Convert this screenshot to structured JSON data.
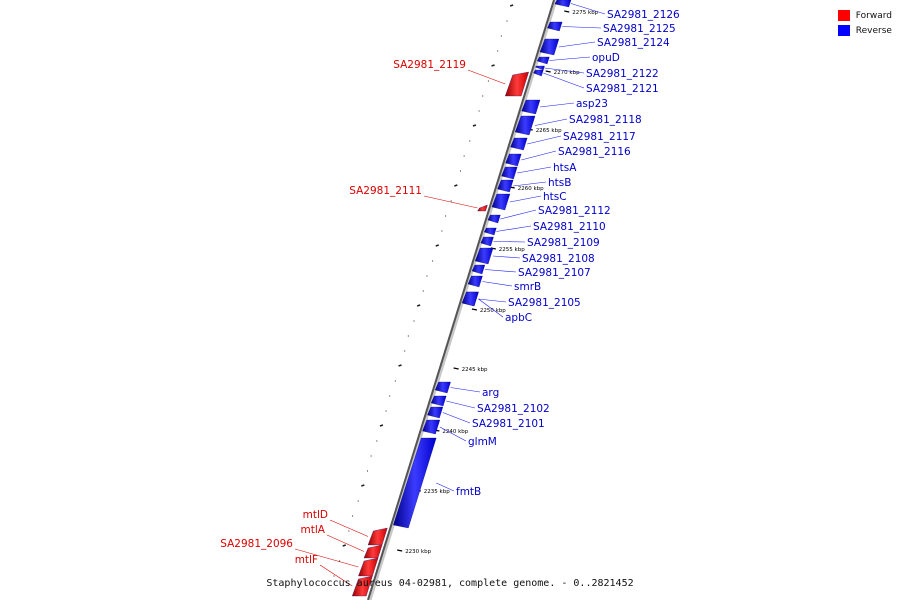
{
  "legend": {
    "forward_label": "Forward",
    "reverse_label": "Reverse",
    "forward_color": "#ff0000",
    "reverse_color": "#0000ff"
  },
  "footer": {
    "title": "Staphylococcus aureus 04-02981, complete genome. - 0..2821452"
  },
  "scale": {
    "unit": "kbp",
    "tick_labels": [
      "2275 kbp",
      "2270 kbp",
      "2265 kbp",
      "2260 kbp",
      "2255 kbp",
      "2250 kbp",
      "2245 kbp",
      "2240 kbp",
      "2235 kbp",
      "2230 kbp"
    ]
  },
  "genes": {
    "forward": [
      {
        "name": "SA2981_2119"
      },
      {
        "name": "SA2981_2111"
      },
      {
        "name": "mtlD"
      },
      {
        "name": "mtlA"
      },
      {
        "name": "SA2981_2096"
      },
      {
        "name": "mtlF"
      }
    ],
    "reverse": [
      {
        "name": "SA2981_2126"
      },
      {
        "name": "SA2981_2125"
      },
      {
        "name": "SA2981_2124"
      },
      {
        "name": "opuD"
      },
      {
        "name": "SA2981_2122"
      },
      {
        "name": "SA2981_2121"
      },
      {
        "name": "asp23"
      },
      {
        "name": "SA2981_2118"
      },
      {
        "name": "SA2981_2117"
      },
      {
        "name": "SA2981_2116"
      },
      {
        "name": "htsA"
      },
      {
        "name": "htsB"
      },
      {
        "name": "htsC"
      },
      {
        "name": "SA2981_2112"
      },
      {
        "name": "SA2981_2110"
      },
      {
        "name": "SA2981_2109"
      },
      {
        "name": "SA2981_2108"
      },
      {
        "name": "SA2981_2107"
      },
      {
        "name": "smrB"
      },
      {
        "name": "SA2981_2105"
      },
      {
        "name": "apbC"
      },
      {
        "name": "arg"
      },
      {
        "name": "SA2981_2102"
      },
      {
        "name": "SA2981_2101"
      },
      {
        "name": "glmM"
      },
      {
        "name": "fmtB"
      }
    ]
  }
}
